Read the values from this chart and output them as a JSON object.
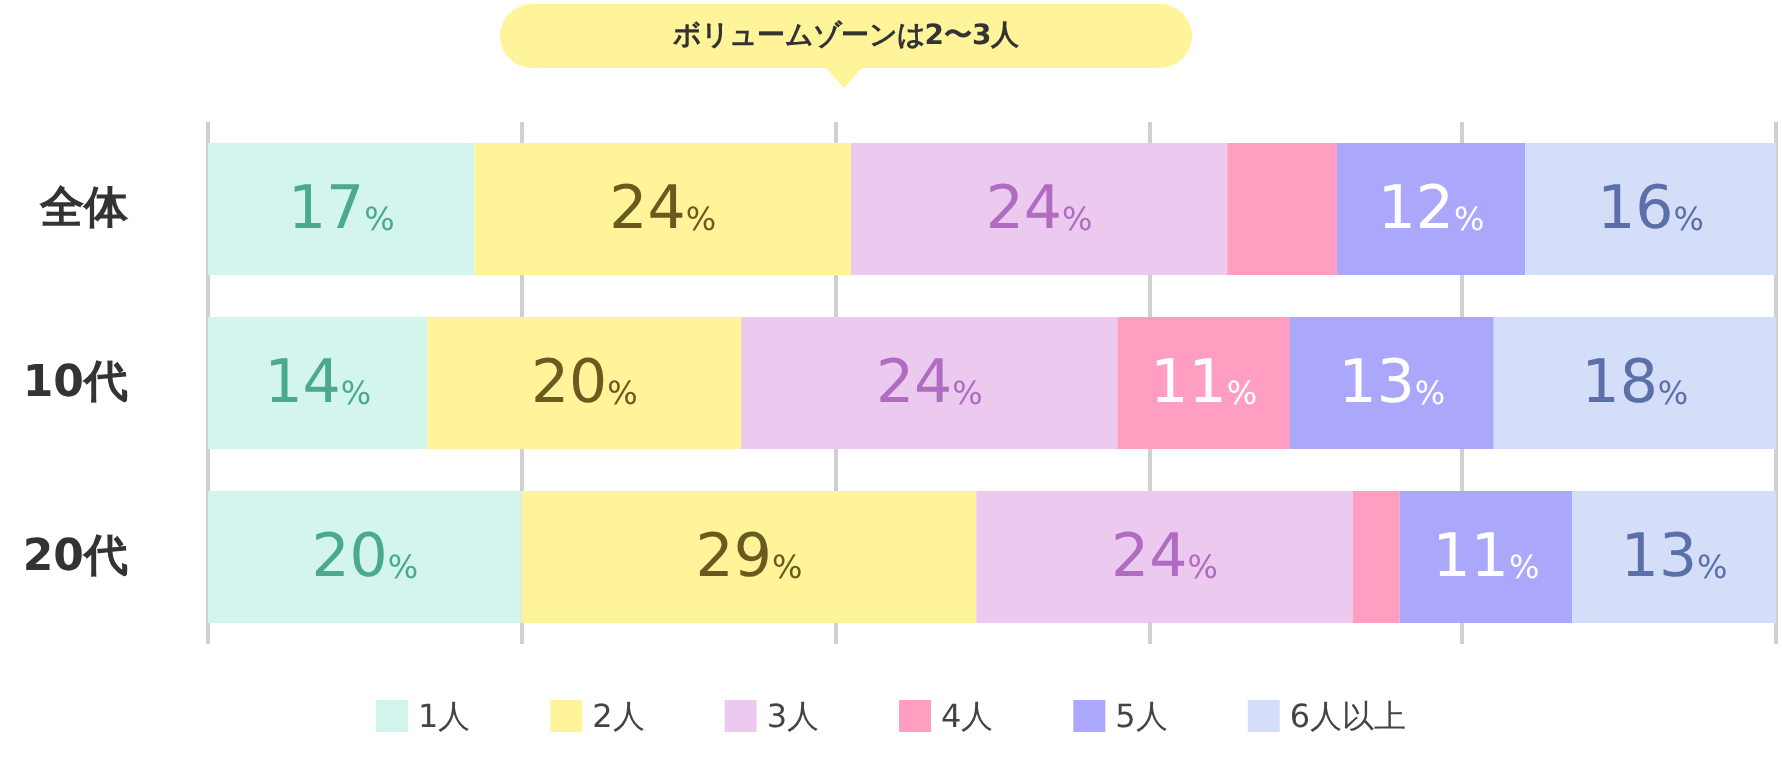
{
  "chart_data": {
    "type": "bar",
    "orientation": "horizontal",
    "stacked": true,
    "categories": [
      "全体",
      "10代",
      "20代"
    ],
    "series": [
      {
        "name": "1人",
        "color": "#d4f5ee",
        "values": [
          17,
          14,
          20
        ],
        "value_labels": [
          "17%",
          "14%",
          "20%"
        ]
      },
      {
        "name": "2人",
        "color": "#fff49a",
        "values": [
          24,
          20,
          29
        ],
        "value_labels": [
          "24%",
          "20%",
          "29%"
        ]
      },
      {
        "name": "3人",
        "color": "#ecc9ee",
        "values": [
          24,
          24,
          24
        ],
        "value_labels": [
          "24%",
          "24%",
          "24%"
        ]
      },
      {
        "name": "4人",
        "color": "#ff9ec0",
        "values": [
          7,
          11,
          3
        ],
        "value_labels": [
          null,
          "11%",
          null
        ]
      },
      {
        "name": "5人",
        "color": "#aba8fb",
        "values": [
          12,
          13,
          11
        ],
        "value_labels": [
          "12%",
          "13%",
          "11%"
        ]
      },
      {
        "name": "6人以上",
        "color": "#d4def9",
        "values": [
          16,
          18,
          13
        ],
        "value_labels": [
          "16%",
          "18%",
          "13%"
        ]
      }
    ],
    "xlim": [
      0,
      100
    ],
    "xticks": [
      {
        "value": 0,
        "label": null
      },
      {
        "value": 20,
        "label": null
      },
      {
        "value": 40,
        "label": null
      },
      {
        "value": 60,
        "label": null
      },
      {
        "value": 80,
        "label": null
      },
      {
        "value": 100,
        "label": null
      }
    ],
    "tick_labels": "y",
    "grid": "x",
    "legend": "bottom",
    "annotations": [
      "ボリュームゾーンは2〜3人"
    ]
  }
}
